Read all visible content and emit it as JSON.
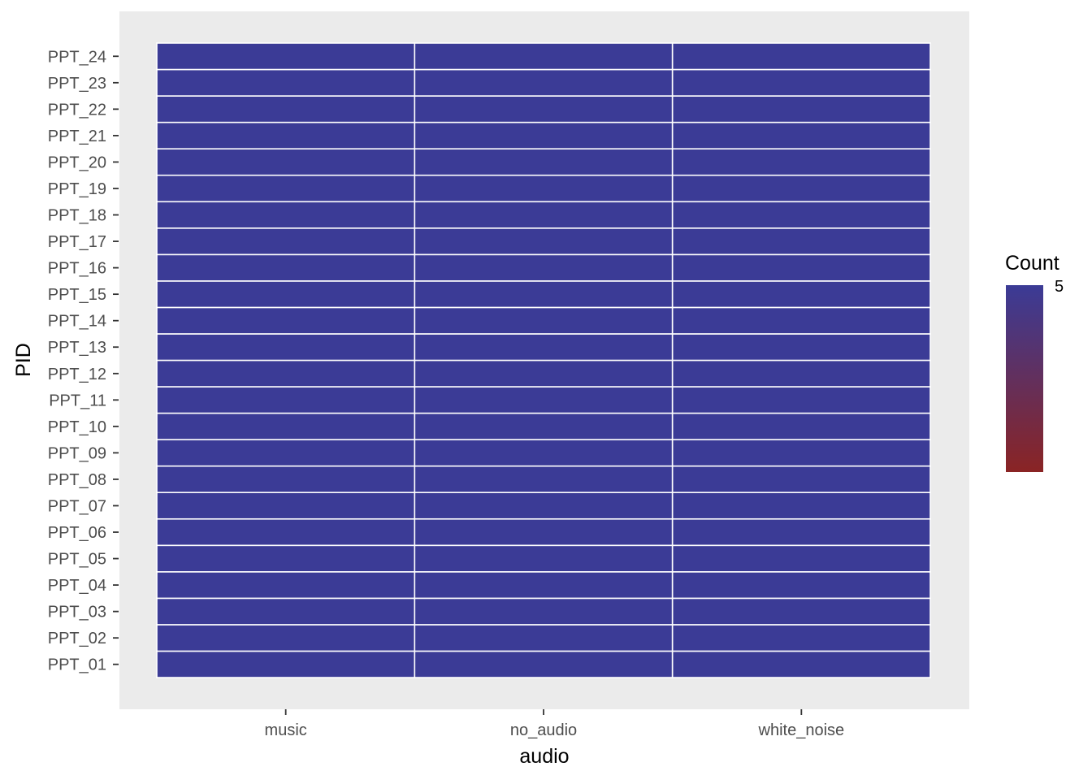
{
  "chart_data": {
    "type": "heatmap",
    "title": "",
    "xlabel": "audio",
    "ylabel": "PID",
    "x_categories": [
      "music",
      "no_audio",
      "white_noise"
    ],
    "y_categories": [
      "PPT_01",
      "PPT_02",
      "PPT_03",
      "PPT_04",
      "PPT_05",
      "PPT_06",
      "PPT_07",
      "PPT_08",
      "PPT_09",
      "PPT_10",
      "PPT_11",
      "PPT_12",
      "PPT_13",
      "PPT_14",
      "PPT_15",
      "PPT_16",
      "PPT_17",
      "PPT_18",
      "PPT_19",
      "PPT_20",
      "PPT_21",
      "PPT_22",
      "PPT_23",
      "PPT_24"
    ],
    "values": [
      [
        5,
        5,
        5
      ],
      [
        5,
        5,
        5
      ],
      [
        5,
        5,
        5
      ],
      [
        5,
        5,
        5
      ],
      [
        5,
        5,
        5
      ],
      [
        5,
        5,
        5
      ],
      [
        5,
        5,
        5
      ],
      [
        5,
        5,
        5
      ],
      [
        5,
        5,
        5
      ],
      [
        5,
        5,
        5
      ],
      [
        5,
        5,
        5
      ],
      [
        5,
        5,
        5
      ],
      [
        5,
        5,
        5
      ],
      [
        5,
        5,
        5
      ],
      [
        5,
        5,
        5
      ],
      [
        5,
        5,
        5
      ],
      [
        5,
        5,
        5
      ],
      [
        5,
        5,
        5
      ],
      [
        5,
        5,
        5
      ],
      [
        5,
        5,
        5
      ],
      [
        5,
        5,
        5
      ],
      [
        5,
        5,
        5
      ],
      [
        5,
        5,
        5
      ],
      [
        5,
        5,
        5
      ]
    ],
    "legend": {
      "title": "Count",
      "tick_labels": [
        "5"
      ],
      "placement": "right",
      "color_high": "#3b3b96",
      "color_low": "#8a2424"
    },
    "grid": false,
    "colors": {
      "panel_background": "#ebebeb",
      "tile_border": "#ffffff"
    }
  }
}
